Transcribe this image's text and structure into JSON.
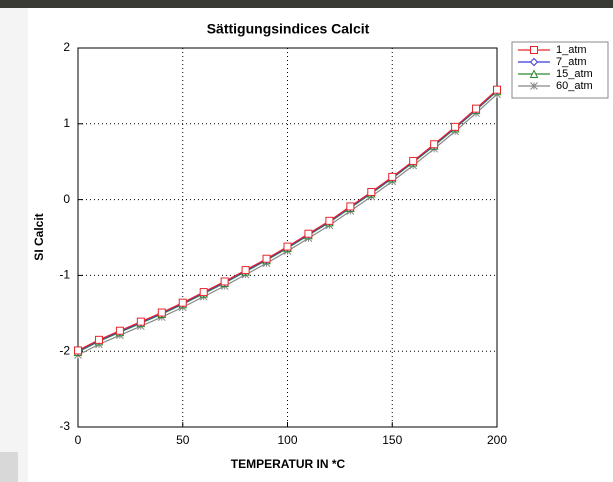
{
  "chart_data": {
    "type": "line",
    "title": "Sättigungsindices Calcit",
    "x_label": "TEMPERATUR IN *C",
    "y_label": "SI Calcit",
    "x": [
      0,
      10,
      20,
      30,
      40,
      50,
      60,
      70,
      80,
      90,
      100,
      110,
      120,
      130,
      140,
      150,
      160,
      170,
      180,
      190,
      200
    ],
    "series": [
      {
        "name": "1_atm",
        "color": "#e8262a",
        "marker": "square",
        "values": [
          -1.99,
          -1.85,
          -1.73,
          -1.61,
          -1.49,
          -1.36,
          -1.22,
          -1.08,
          -0.93,
          -0.78,
          -0.62,
          -0.45,
          -0.28,
          -0.09,
          0.1,
          0.3,
          0.51,
          0.73,
          0.96,
          1.2,
          1.45
        ]
      },
      {
        "name": "7_atm",
        "color": "#3b3bd6",
        "marker": "diamond",
        "values": [
          -2.0,
          -1.86,
          -1.74,
          -1.62,
          -1.5,
          -1.37,
          -1.23,
          -1.09,
          -0.94,
          -0.79,
          -0.63,
          -0.46,
          -0.29,
          -0.1,
          0.09,
          0.29,
          0.5,
          0.72,
          0.95,
          1.19,
          1.44
        ]
      },
      {
        "name": "15_atm",
        "color": "#2a8a2a",
        "marker": "triangle",
        "values": [
          -2.01,
          -1.87,
          -1.75,
          -1.63,
          -1.51,
          -1.38,
          -1.24,
          -1.1,
          -0.95,
          -0.8,
          -0.64,
          -0.47,
          -0.3,
          -0.11,
          0.08,
          0.28,
          0.49,
          0.71,
          0.94,
          1.18,
          1.43
        ]
      },
      {
        "name": "60_atm",
        "color": "#888888",
        "marker": "asterisk",
        "values": [
          -2.05,
          -1.91,
          -1.79,
          -1.67,
          -1.55,
          -1.42,
          -1.28,
          -1.14,
          -0.99,
          -0.84,
          -0.68,
          -0.51,
          -0.34,
          -0.15,
          0.04,
          0.24,
          0.45,
          0.67,
          0.9,
          1.14,
          1.39
        ]
      }
    ],
    "xlim": [
      0,
      200
    ],
    "xticks": [
      0,
      50,
      100,
      150,
      200
    ],
    "ylim": [
      -3,
      2
    ],
    "yticks": [
      -3,
      -2,
      -1,
      0,
      1,
      2
    ],
    "grid": true,
    "legend": "right"
  }
}
